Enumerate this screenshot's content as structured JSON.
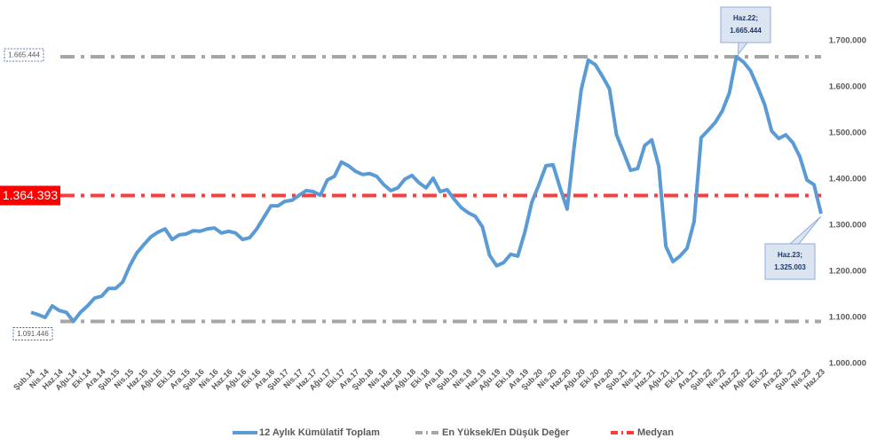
{
  "chart_data": {
    "type": "line",
    "categories": [
      "Şub.14",
      null,
      "Nis.14",
      null,
      "Haz.14",
      null,
      "Ağu.14",
      null,
      "Eki.14",
      null,
      "Ara.14",
      null,
      "Şub.15",
      null,
      "Nis.15",
      null,
      "Haz.15",
      null,
      "Ağu.15",
      null,
      "Eki.15",
      null,
      "Ara.15",
      null,
      "Şub.16",
      null,
      "Nis.16",
      null,
      "Haz.16",
      null,
      "Ağu.16",
      null,
      "Eki.16",
      null,
      "Ara.16",
      null,
      "Şub.17",
      null,
      "Nis.17",
      null,
      "Haz.17",
      null,
      "Ağu.17",
      null,
      "Eki.17",
      null,
      "Ara.17",
      null,
      "Şub.18",
      null,
      "Nis.18",
      null,
      "Haz.18",
      null,
      "Ağu.18",
      null,
      "Eki.18",
      null,
      "Ara.18",
      null,
      "Şub.19",
      null,
      "Nis.19",
      null,
      "Haz.19",
      null,
      "Ağu.19",
      null,
      "Eki.19",
      null,
      "Ara.19",
      null,
      "Şub.20",
      null,
      "Nis.20",
      null,
      "Haz.20",
      null,
      "Ağu.20",
      null,
      "Eki.20",
      null,
      "Ara.20",
      null,
      "Şub.21",
      null,
      "Nis.21",
      null,
      "Haz.21",
      null,
      "Ağu.21",
      null,
      "Eki.21",
      null,
      "Ara.21",
      null,
      "Şub.22",
      null,
      "Nis.22",
      null,
      "Haz.22",
      null,
      "Ağu.22",
      null,
      "Eki.22",
      null,
      "Ara.22",
      null,
      "Şub.23",
      null,
      "Nis.23",
      null,
      "Haz.23"
    ],
    "series": [
      {
        "name": "12 Aylık Kümülatif Toplam",
        "color": "#5b9bd5",
        "values": [
          1111000,
          1106000,
          1100000,
          1125000,
          1115000,
          1111000,
          1091446,
          1111000,
          1125000,
          1142000,
          1146000,
          1163000,
          1163000,
          1177000,
          1212000,
          1240000,
          1258000,
          1275000,
          1285000,
          1292000,
          1269000,
          1279000,
          1281000,
          1288000,
          1287000,
          1292000,
          1294000,
          1283000,
          1287000,
          1283000,
          1269000,
          1273000,
          1292000,
          1317000,
          1342000,
          1342000,
          1352000,
          1354000,
          1365000,
          1375000,
          1373000,
          1365000,
          1398000,
          1406000,
          1437000,
          1429000,
          1417000,
          1410000,
          1412000,
          1406000,
          1388000,
          1375000,
          1381000,
          1400000,
          1408000,
          1392000,
          1381000,
          1402000,
          1373000,
          1377000,
          1356000,
          1338000,
          1327000,
          1319000,
          1296000,
          1235000,
          1212000,
          1219000,
          1237000,
          1233000,
          1285000,
          1350000,
          1388000,
          1429000,
          1431000,
          1381000,
          1335000,
          1471000,
          1594000,
          1658000,
          1648000,
          1623000,
          1596000,
          1496000,
          1458000,
          1419000,
          1423000,
          1473000,
          1485000,
          1427000,
          1254000,
          1221000,
          1233000,
          1250000,
          1308000,
          1490000,
          1506000,
          1523000,
          1548000,
          1587000,
          1665444,
          1654000,
          1635000,
          1600000,
          1562000,
          1504000,
          1488000,
          1496000,
          1479000,
          1448000,
          1398000,
          1388000,
          1325003
        ]
      }
    ],
    "reference_lines": [
      {
        "name": "En Yüksek/En Düşük Değer",
        "color": "#a6a6a6",
        "values": [
          1665444,
          1091446
        ],
        "value_labels": [
          "1.665.444",
          "1.091.446"
        ]
      },
      {
        "name": "Medyan",
        "color": "#ff3b3b",
        "values": [
          1364393
        ],
        "value_labels": [
          "1.364.393"
        ]
      }
    ],
    "annotations": [
      {
        "label": "Haz.22;",
        "value_label": "1.665.444"
      },
      {
        "label": "Haz.23;",
        "value_label": "1.325.003"
      }
    ],
    "ylim": [
      1000000,
      1700000
    ],
    "yticks": [
      {
        "value": 1000000,
        "label": "1.000.000"
      },
      {
        "value": 1100000,
        "label": "1.100.000"
      },
      {
        "value": 1200000,
        "label": "1.200.000"
      },
      {
        "value": 1300000,
        "label": "1.300.000"
      },
      {
        "value": 1400000,
        "label": "1.400.000"
      },
      {
        "value": 1500000,
        "label": "1.500.000"
      },
      {
        "value": 1600000,
        "label": "1.600.000"
      },
      {
        "value": 1700000,
        "label": "1.700.000"
      }
    ],
    "legend": "bottom"
  }
}
